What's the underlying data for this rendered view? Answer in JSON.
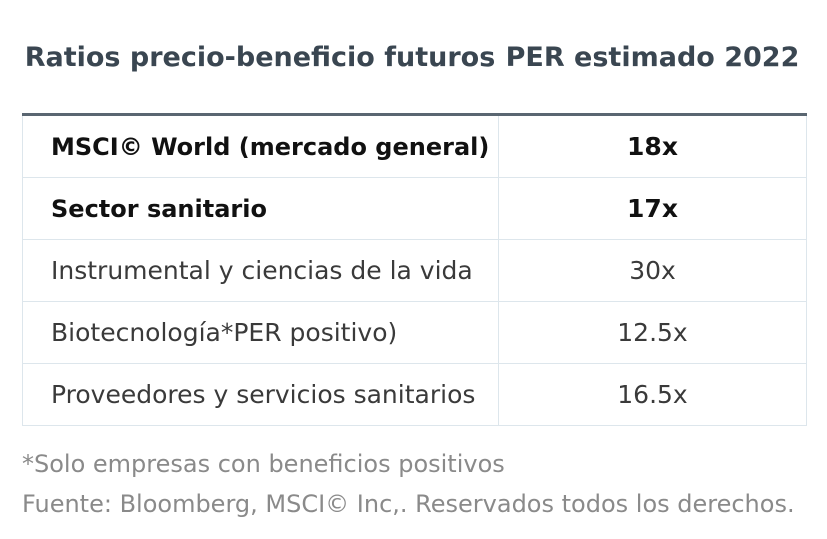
{
  "header": {
    "col1": "Ratios precio-beneficio futuros",
    "col2": "PER estimado 2022"
  },
  "rows": [
    {
      "name": "MSCI© World (mercado general)",
      "value": "18x",
      "bold": true
    },
    {
      "name": "Sector sanitario",
      "value": "17x",
      "bold": true
    },
    {
      "name": "Instrumental y ciencias de la vida",
      "value": "30x",
      "bold": false
    },
    {
      "name": "Biotecnología*PER positivo)",
      "value": "12.5x",
      "bold": false
    },
    {
      "name": "Proveedores y servicios sanitarios",
      "value": "16.5x",
      "bold": false
    }
  ],
  "footnotes": {
    "note": "*Solo empresas con beneficios positivos",
    "source": "Fuente: Bloomberg, MSCI© Inc,. Reservados todos los derechos."
  }
}
